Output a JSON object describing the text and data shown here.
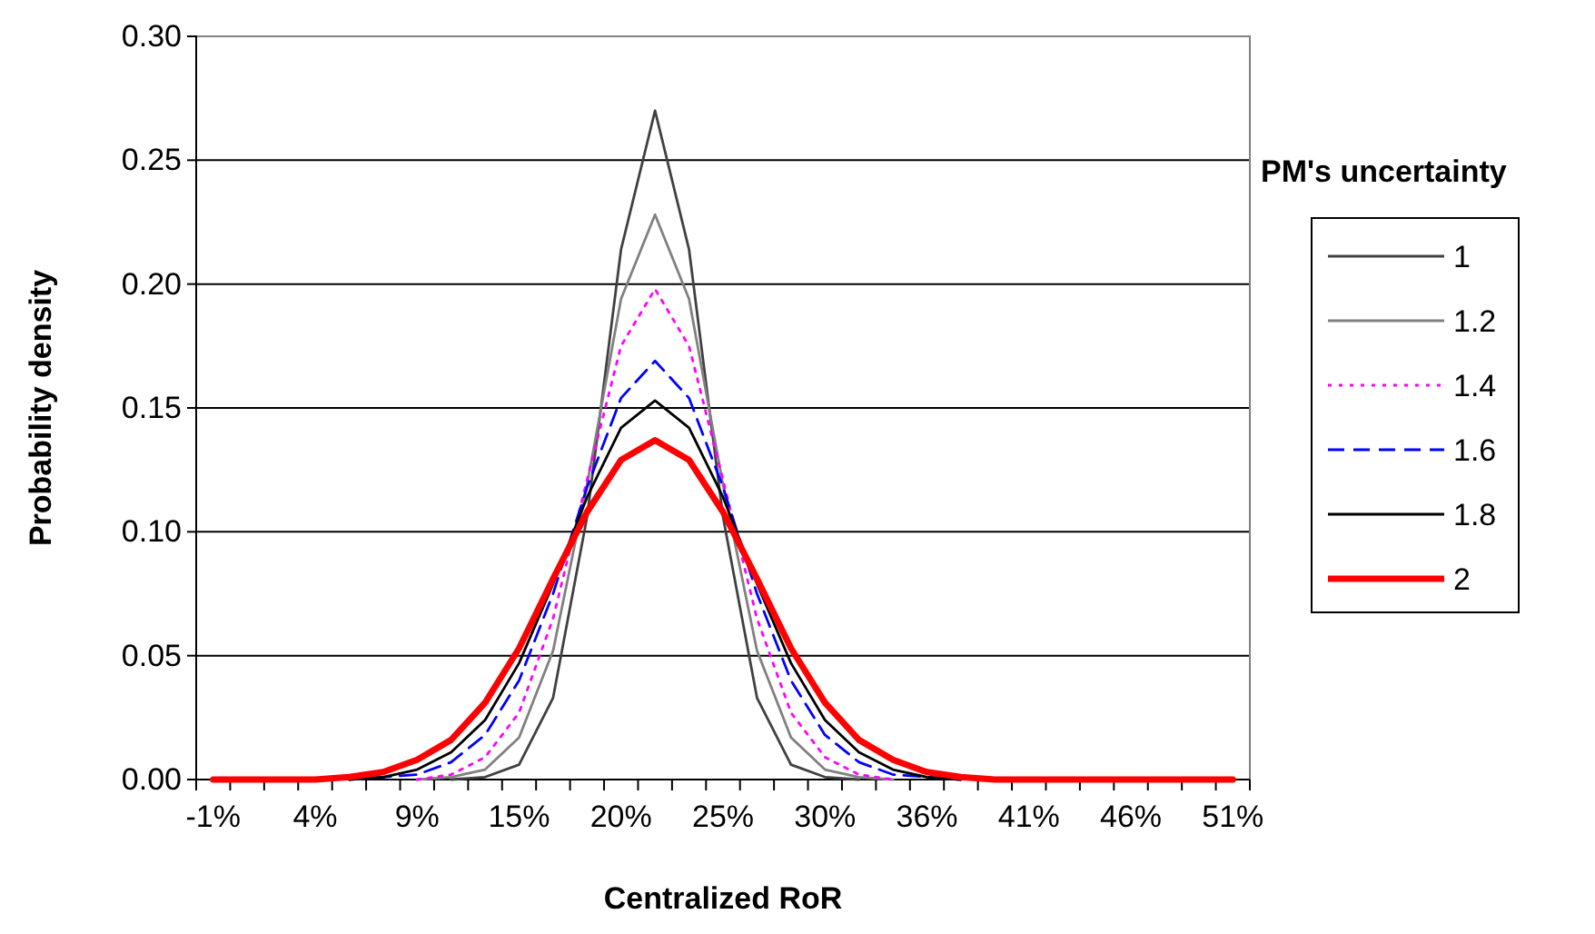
{
  "chart_data": {
    "type": "line",
    "xlabel": "Centralized RoR",
    "ylabel": "Probability density",
    "legend_title": "PM's uncertainty",
    "legend": "right",
    "grid": "y",
    "categories": [
      "-1%",
      null,
      null,
      "4%",
      null,
      null,
      "9%",
      null,
      null,
      "15%",
      null,
      null,
      "20%",
      null,
      null,
      "25%",
      null,
      null,
      "30%",
      null,
      null,
      "36%",
      null,
      null,
      "41%",
      null,
      null,
      "46%",
      null,
      null,
      "51%"
    ],
    "ylim": [
      0,
      0.3
    ],
    "yticks": [
      {
        "value": 0,
        "label": "0.00"
      },
      {
        "value": 0.05,
        "label": "0.05"
      },
      {
        "value": 0.1,
        "label": "0.10"
      },
      {
        "value": 0.15,
        "label": "0.15"
      },
      {
        "value": 0.2,
        "label": "0.20"
      },
      {
        "value": 0.25,
        "label": "0.25"
      },
      {
        "value": 0.3,
        "label": "0.30"
      }
    ],
    "series": [
      {
        "name": "1",
        "color": "#404040",
        "line_style": "solid",
        "values": [
          null,
          null,
          null,
          null,
          null,
          null,
          null,
          0,
          0.001,
          0.006,
          0.033,
          0.106,
          0.214,
          0.27,
          0.214,
          0.106,
          0.033,
          0.006,
          0.001,
          0,
          null,
          null,
          null,
          null,
          null,
          null,
          null,
          null,
          null,
          null,
          null
        ]
      },
      {
        "name": "1.2",
        "color": "#808080",
        "line_style": "solid",
        "values": [
          null,
          null,
          null,
          null,
          null,
          null,
          0,
          0.001,
          0.004,
          0.017,
          0.052,
          0.119,
          0.194,
          0.228,
          0.194,
          0.119,
          0.052,
          0.017,
          0.004,
          0.001,
          0,
          null,
          null,
          null,
          null,
          null,
          null,
          null,
          null,
          null,
          null
        ]
      },
      {
        "name": "1.4",
        "color": "#ff00ff",
        "line_style": "dotted",
        "values": [
          null,
          null,
          null,
          null,
          null,
          null,
          0,
          0.002,
          0.009,
          0.027,
          0.065,
          0.121,
          0.175,
          0.198,
          0.175,
          0.121,
          0.065,
          0.027,
          0.009,
          0.002,
          0,
          null,
          null,
          null,
          null,
          null,
          null,
          null,
          null,
          null,
          null
        ]
      },
      {
        "name": "1.6",
        "color": "#0000ff",
        "line_style": "dashed",
        "values": [
          null,
          null,
          null,
          null,
          0,
          0.001,
          0.002,
          0.007,
          0.018,
          0.04,
          0.075,
          0.118,
          0.154,
          0.169,
          0.154,
          0.118,
          0.075,
          0.04,
          0.018,
          0.007,
          0.002,
          0.001,
          0,
          null,
          null,
          null,
          null,
          null,
          null,
          null,
          null
        ]
      },
      {
        "name": "1.8",
        "color": "#000000",
        "line_style": "solid",
        "values": [
          null,
          null,
          null,
          null,
          0,
          0.001,
          0.004,
          0.011,
          0.024,
          0.047,
          0.079,
          0.114,
          0.142,
          0.153,
          0.142,
          0.114,
          0.079,
          0.047,
          0.024,
          0.011,
          0.004,
          0.001,
          0,
          null,
          null,
          null,
          null,
          null,
          null,
          null,
          null
        ]
      },
      {
        "name": "2",
        "color": "#ff0000",
        "line_style": "solid",
        "values": [
          0,
          0,
          0,
          0,
          0.001,
          0.003,
          0.008,
          0.016,
          0.031,
          0.053,
          0.081,
          0.108,
          0.129,
          0.137,
          0.129,
          0.108,
          0.081,
          0.053,
          0.031,
          0.016,
          0.008,
          0.003,
          0.001,
          0,
          0,
          0,
          0,
          0,
          0,
          0,
          0
        ]
      }
    ]
  }
}
